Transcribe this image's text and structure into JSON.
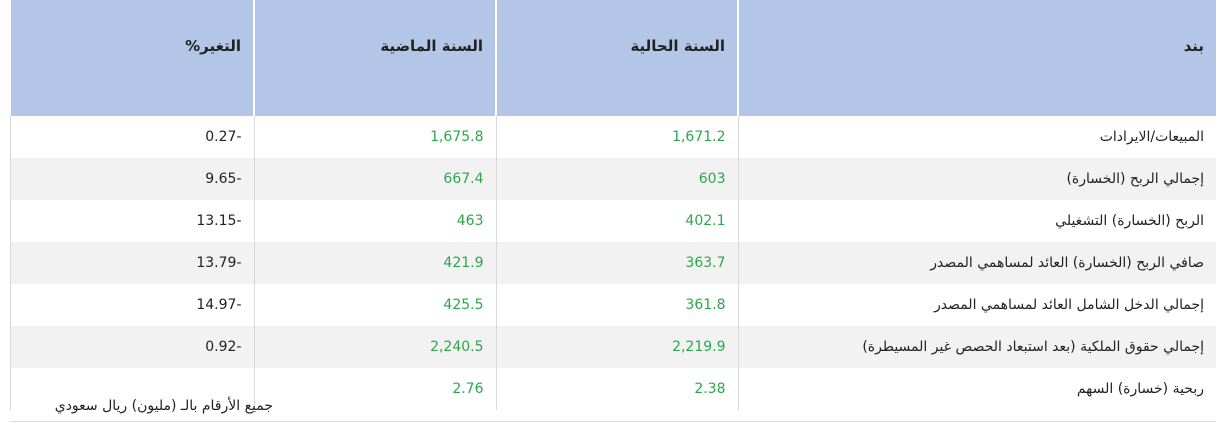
{
  "table": {
    "header": [
      "بند",
      "السنة الحالية",
      "السنة الماضية",
      "التغير%"
    ],
    "rows": [
      [
        "المبيعات/الايرادات",
        "1,671.2",
        "1,675.8",
        "0.27-"
      ],
      [
        "إجمالي الربح (الخسارة)",
        "603",
        "667.4",
        "9.65-"
      ],
      [
        "الربح (الخسارة) التشغيلي",
        "402.1",
        "463",
        "13.15-"
      ],
      [
        "صافي الربح (الخسارة) العائد لمساهمي المصدر",
        "363.7",
        "421.9",
        "13.79-"
      ],
      [
        "إجمالي الدخل الشامل العائد لمساهمي المصدر",
        "361.8",
        "425.5",
        "14.97-"
      ],
      [
        "إجمالي حقوق الملكية (بعد استبعاد الحصص غير المسيطرة)",
        "2,219.9",
        "2,240.5",
        "0.92-"
      ],
      [
        "ربحية (خسارة) السهم",
        "2.38",
        "2.76"
      ]
    ]
  },
  "footnote": "جميع الأرقام بالـ (مليون) ريال سعودي"
}
